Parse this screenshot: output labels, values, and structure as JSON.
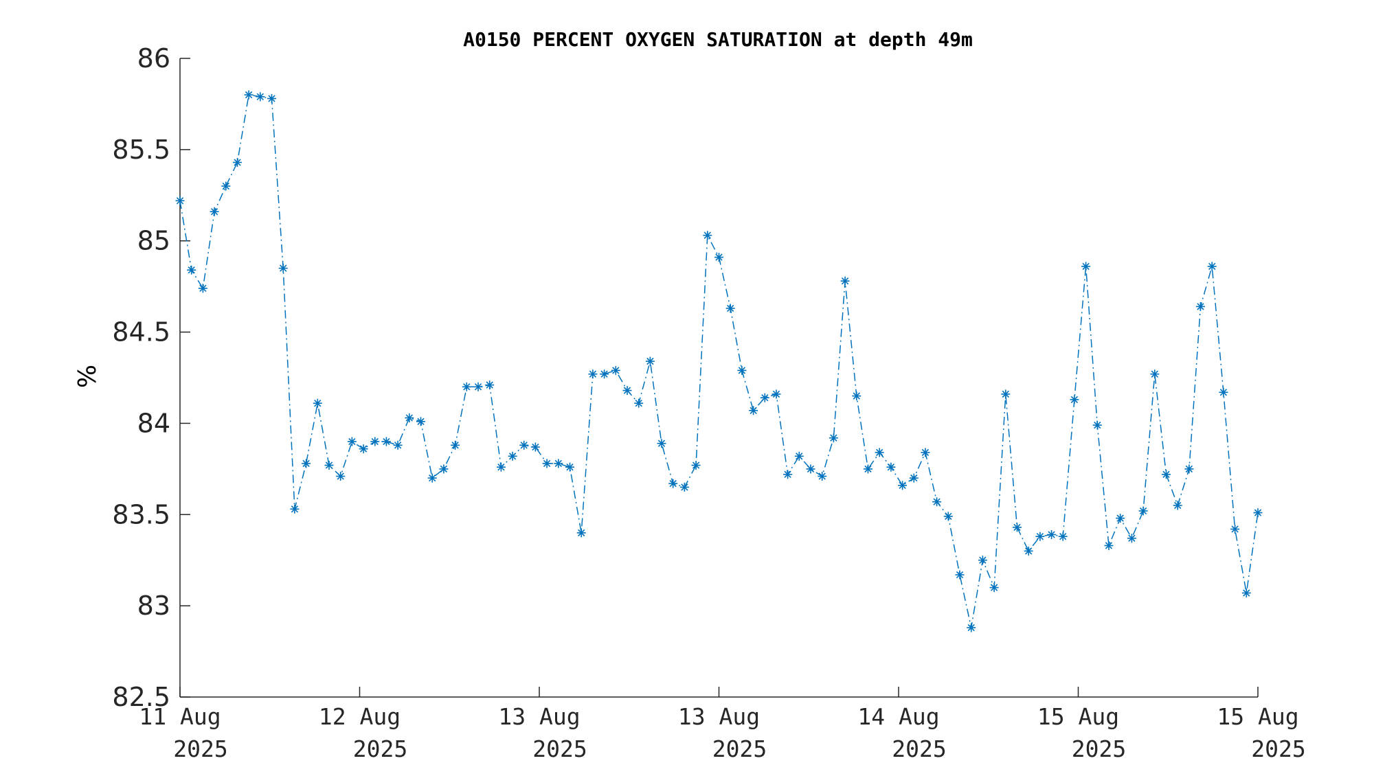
{
  "chart_data": {
    "type": "line",
    "title": "A0150 PERCENT OXYGEN SATURATION at depth 49m",
    "xlabel": "",
    "ylabel": "%",
    "ylim": [
      82.5,
      86
    ],
    "yticks": [
      "82.5",
      "83",
      "83.5",
      "84",
      "84.5",
      "85",
      "85.5",
      "86"
    ],
    "xtick_labels": [
      [
        "11 Aug",
        "2025"
      ],
      [
        "12 Aug",
        "2025"
      ],
      [
        "13 Aug",
        "2025"
      ],
      [
        "13 Aug",
        "2025"
      ],
      [
        "14 Aug",
        "2025"
      ],
      [
        "15 Aug",
        "2025"
      ],
      [
        "15 Aug",
        "2025"
      ]
    ],
    "grid": false,
    "line_style": "dash-dot",
    "marker": "asterisk",
    "color": "#0072BD",
    "series": [
      {
        "values": [
          85.22,
          84.84,
          84.74,
          85.16,
          85.3,
          85.43,
          85.8,
          85.79,
          85.78,
          84.85,
          83.53,
          83.78,
          84.11,
          83.77,
          83.71,
          83.9,
          83.86,
          83.9,
          83.9,
          83.88,
          84.03,
          84.01,
          83.7,
          83.75,
          83.88,
          84.2,
          84.2,
          84.21,
          83.76,
          83.82,
          83.88,
          83.87,
          83.78,
          83.78,
          83.76,
          83.4,
          84.27,
          84.27,
          84.29,
          84.18,
          84.11,
          84.34,
          83.89,
          83.67,
          83.65,
          83.77,
          85.03,
          84.91,
          84.63,
          84.29,
          84.07,
          84.14,
          84.16,
          83.72,
          83.82,
          83.75,
          83.71,
          83.92,
          84.78,
          84.15,
          83.75,
          83.84,
          83.76,
          83.66,
          83.7,
          83.84,
          83.57,
          83.49,
          83.17,
          82.88,
          83.25,
          83.1,
          84.16,
          83.43,
          83.3,
          83.38,
          83.39,
          83.38,
          84.13,
          84.86,
          83.99,
          83.33,
          83.48,
          83.37,
          83.52,
          84.27,
          83.72,
          83.55,
          83.75,
          84.64,
          84.86,
          84.17,
          83.42,
          83.07,
          83.51
        ]
      }
    ]
  }
}
